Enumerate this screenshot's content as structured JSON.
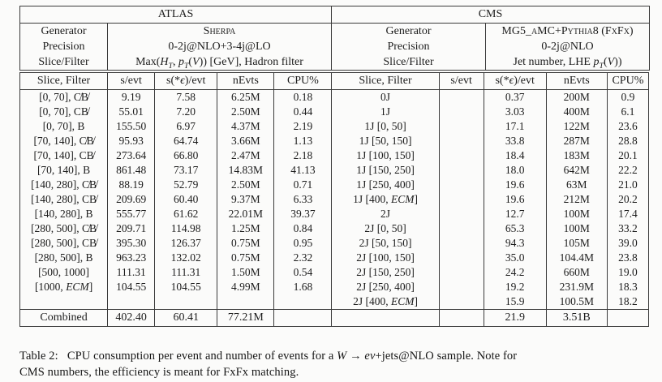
{
  "columns": [
    "Slice, Filter",
    "s/evt",
    "s(*<i>ϵ</i>)/evt",
    "nEvts",
    "CPU%"
  ],
  "atlas": {
    "title": "ATLAS",
    "generator_label": "Generator",
    "generator_html": "<span class='sc'>Sherpa</span>",
    "precision_label": "Precision",
    "precision": "0-2j@NLO+3-4j@LO",
    "slice_label": "Slice/Filter",
    "slice_html": "Max(<i>H<sub>T</sub></i>, <i>p<sub>T</sub></i>(<i>V</i>)) [GeV], Hadron filter",
    "rows": [
      {
        "slice": "[0, 70], C̸B̸",
        "s": "9.19",
        "se": "7.58",
        "n": "6.25M",
        "cpu": "0.18"
      },
      {
        "slice": "[0, 70], CB̸",
        "s": "55.01",
        "se": "7.20",
        "n": "2.50M",
        "cpu": "0.44"
      },
      {
        "slice": "[0, 70], B",
        "s": "155.50",
        "se": "6.97",
        "n": "4.37M",
        "cpu": "2.19"
      },
      {
        "slice": "[70, 140], C̸B̸",
        "s": "95.93",
        "se": "64.74",
        "n": "3.66M",
        "cpu": "1.13"
      },
      {
        "slice": "[70, 140], CB̸",
        "s": "273.64",
        "se": "66.80",
        "n": "2.47M",
        "cpu": "2.18"
      },
      {
        "slice": "[70, 140], B",
        "s": "861.48",
        "se": "73.17",
        "n": "14.83M",
        "cpu": "41.13"
      },
      {
        "slice": "[140, 280], C̸B̸",
        "s": "88.19",
        "se": "52.79",
        "n": "2.50M",
        "cpu": "0.71"
      },
      {
        "slice": "[140, 280], CB̸",
        "s": "209.69",
        "se": "60.40",
        "n": "9.37M",
        "cpu": "6.33"
      },
      {
        "slice": "[140, 280], B",
        "s": "555.77",
        "se": "61.62",
        "n": "22.01M",
        "cpu": "39.37"
      },
      {
        "slice": "[280, 500], C̸B̸",
        "s": "209.71",
        "se": "114.98",
        "n": "1.25M",
        "cpu": "0.84"
      },
      {
        "slice": "[280, 500], CB̸",
        "s": "395.30",
        "se": "126.37",
        "n": "0.75M",
        "cpu": "0.95"
      },
      {
        "slice": "[280, 500], B",
        "s": "963.23",
        "se": "132.02",
        "n": "0.75M",
        "cpu": "2.32"
      },
      {
        "slice": "[500, 1000]",
        "s": "111.31",
        "se": "111.31",
        "n": "1.50M",
        "cpu": "0.54"
      },
      {
        "slice": "[1000, <i>ECM</i>]",
        "s": "104.55",
        "se": "104.55",
        "n": "4.99M",
        "cpu": "1.68"
      }
    ],
    "combined": {
      "slice": "Combined",
      "s": "402.40",
      "se": "60.41",
      "n": "77.21M",
      "cpu": ""
    }
  },
  "cms": {
    "title": "CMS",
    "generator_label": "Generator",
    "generator_html": "<span class='sc'>MG5_aMC+Pythia8 (FxFx)</span>",
    "precision_label": "Precision",
    "precision": "0-2j@NLO",
    "slice_label": "Slice/Filter",
    "slice_html": "Jet number, LHE <i>p<sub>T</sub></i>(<i>V</i>))",
    "rows": [
      {
        "slice": "0J",
        "s": "",
        "se": "0.37",
        "n": "200M",
        "cpu": "0.9"
      },
      {
        "slice": "1J",
        "s": "",
        "se": "3.03",
        "n": "400M",
        "cpu": "6.1"
      },
      {
        "slice": "1J [0, 50]",
        "s": "",
        "se": "17.1",
        "n": "122M",
        "cpu": "23.6"
      },
      {
        "slice": "1J [50, 150]",
        "s": "",
        "se": "33.8",
        "n": "287M",
        "cpu": "28.8"
      },
      {
        "slice": "1J [100, 150]",
        "s": "",
        "se": "18.4",
        "n": "183M",
        "cpu": "20.1"
      },
      {
        "slice": "1J [150, 250]",
        "s": "",
        "se": "18.0",
        "n": "642M",
        "cpu": "22.2"
      },
      {
        "slice": "1J [250, 400]",
        "s": "",
        "se": "19.6",
        "n": "63M",
        "cpu": "21.0"
      },
      {
        "slice": "1J [400, <i>ECM</i>]",
        "s": "",
        "se": "19.6",
        "n": "212M",
        "cpu": "20.2"
      },
      {
        "slice": "2J",
        "s": "",
        "se": "12.7",
        "n": "100M",
        "cpu": "17.4"
      },
      {
        "slice": "2J [0, 50]",
        "s": "",
        "se": "65.3",
        "n": "100M",
        "cpu": "33.2"
      },
      {
        "slice": "2J [50, 150]",
        "s": "",
        "se": "94.3",
        "n": "105M",
        "cpu": "39.0"
      },
      {
        "slice": "2J [100, 150]",
        "s": "",
        "se": "35.0",
        "n": "104.4M",
        "cpu": "23.8"
      },
      {
        "slice": "2J [150, 250]",
        "s": "",
        "se": "24.2",
        "n": "660M",
        "cpu": "19.0"
      },
      {
        "slice": "2J [250, 400]",
        "s": "",
        "se": "19.2",
        "n": "231.9M",
        "cpu": "18.3"
      },
      {
        "slice": "2J [400, <i>ECM</i>]",
        "s": "",
        "se": "15.9",
        "n": "100.5M",
        "cpu": "18.2"
      }
    ],
    "combined": {
      "slice": "",
      "s": "",
      "se": "21.9",
      "n": "3.51B",
      "cpu": ""
    }
  },
  "caption_html": "Table 2:&nbsp;&nbsp; CPU consumption per event and number of events for a <i>W</i> → <i>eν</i>+jets@NLO sample. Note for<br>CMS numbers, the efficiency is meant for FxFx matching."
}
